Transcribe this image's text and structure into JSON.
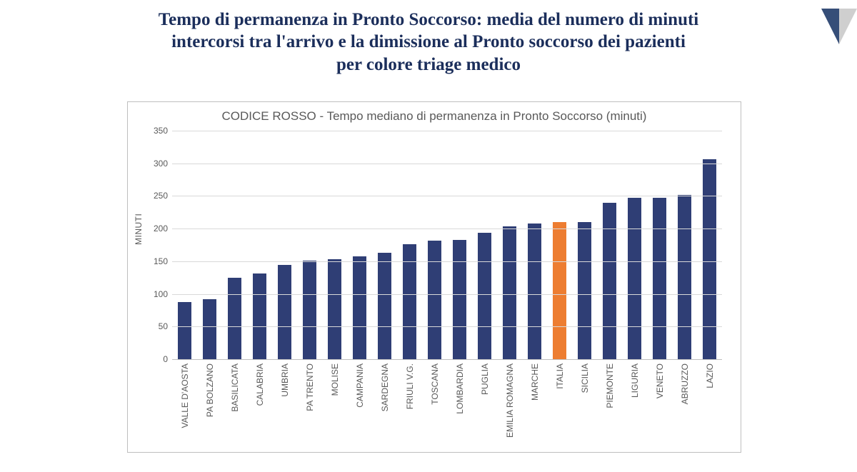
{
  "title": {
    "line1": "Tempo di permanenza in Pronto Soccorso: media del numero di minuti",
    "line2": "intercorsi tra l'arrivo e la dimissione al Pronto soccorso dei pazienti",
    "line3": "per colore triage medico",
    "color": "#1b2e5b",
    "fontsize": 25
  },
  "corner_deco": {
    "fill_left": "#364e78",
    "fill_right": "#cfcfcf"
  },
  "chart": {
    "type": "bar",
    "title": "CODICE ROSSO - Tempo mediano di permanenza in Pronto Soccorso (minuti)",
    "title_color": "#595959",
    "title_fontsize": 17,
    "y_axis_title": "MINUTI",
    "y_axis_title_fontsize": 12,
    "ylim": [
      0,
      350
    ],
    "ytick_step": 50,
    "grid_color": "#d9d9d9",
    "axis_color": "#bfbfbf",
    "background_color": "#ffffff",
    "label_fontsize": 12,
    "label_color": "#595959",
    "bar_default_color": "#2f3e75",
    "bar_highlight_color": "#ed7d31",
    "bar_width_ratio": 0.55,
    "categories": [
      "VALLE D'AOSTA",
      "PA BOLZANO",
      "BASILICATA",
      "CALABRIA",
      "UMBRIA",
      "PA TRENTO",
      "MOLISE",
      "CAMPANIA",
      "SARDEGNA",
      "FRIULI V.G.",
      "TOSCANA",
      "LOMBARDIA",
      "PUGLIA",
      "EMILIA ROMAGNA",
      "MARCHE",
      "ITALIA",
      "SICILIA",
      "PIEMONTE",
      "LIGURIA",
      "VENETO",
      "ABRUZZO",
      "LAZIO"
    ],
    "values": [
      88,
      92,
      125,
      131,
      144,
      151,
      153,
      158,
      163,
      176,
      182,
      183,
      194,
      203,
      208,
      210,
      210,
      240,
      247,
      247,
      252,
      306
    ],
    "highlight_index": 15
  }
}
